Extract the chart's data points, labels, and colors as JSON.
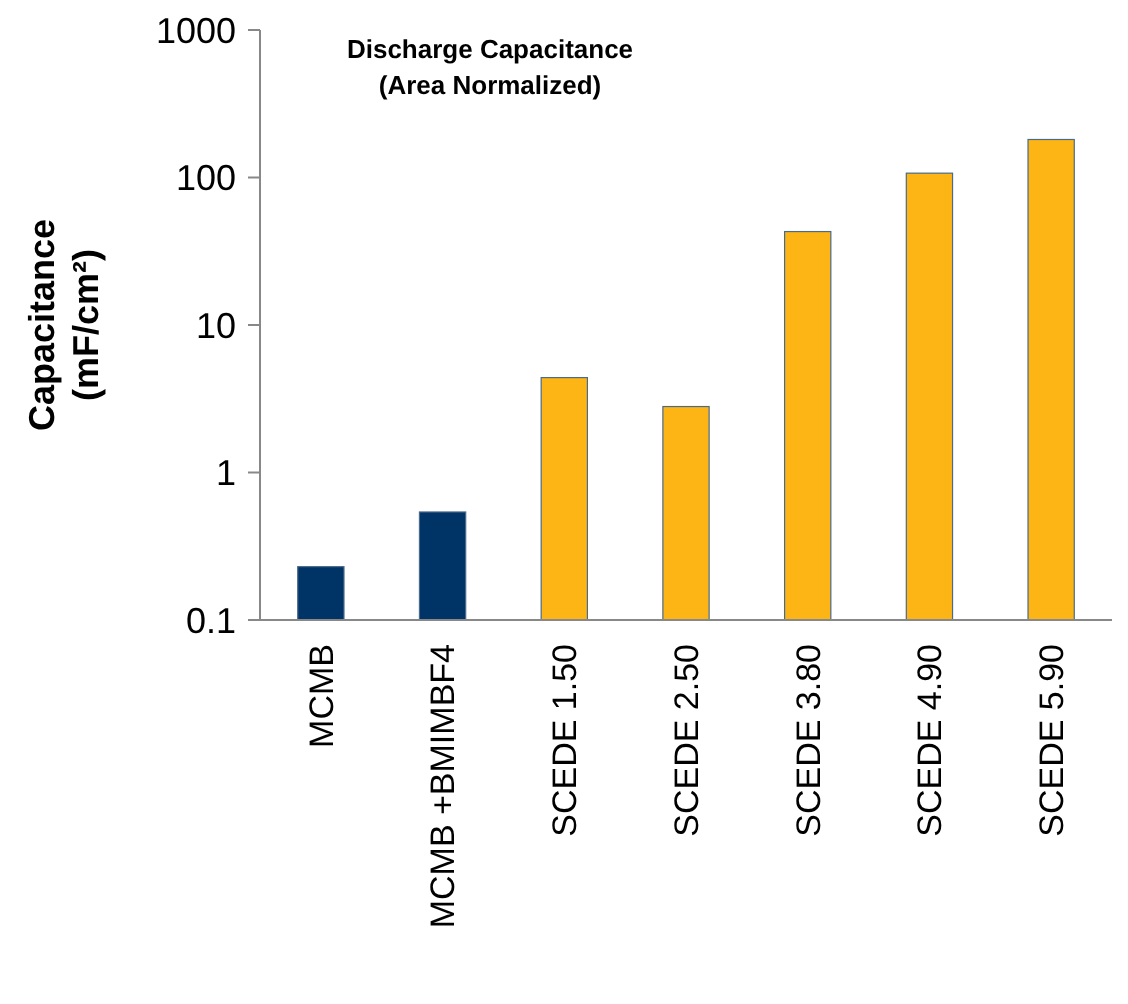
{
  "chart_data": {
    "type": "bar",
    "title": "Discharge Capacitance",
    "subtitle": "(Area Normalized)",
    "ylabel": "Capacitance\n(mF/cm²)",
    "categories": [
      "MCMB",
      "MCMB +BMIMBF4",
      "SCEDE 1.50",
      "SCEDE 2.50",
      "SCEDE 3.80",
      "SCEDE 4.90",
      "SCEDE 5.90"
    ],
    "values": [
      0.23,
      0.54,
      4.4,
      2.8,
      43,
      107,
      181
    ],
    "colors": [
      "#003366",
      "#003366",
      "#fdb515",
      "#fdb515",
      "#fdb515",
      "#fdb515",
      "#fdb515"
    ],
    "log": true,
    "ylim": [
      0.1,
      1000
    ],
    "yticks": [
      0.1,
      1,
      10,
      100,
      1000
    ],
    "grid": false
  }
}
